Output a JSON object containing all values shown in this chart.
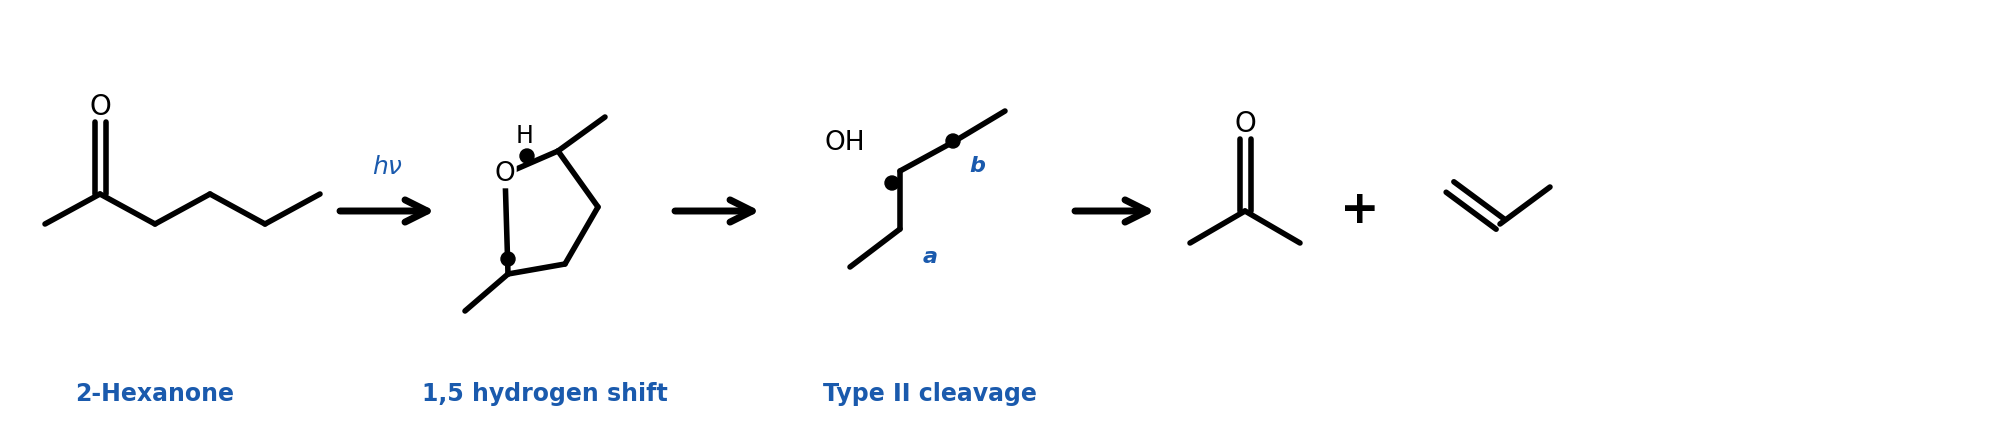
{
  "bg_color": "#ffffff",
  "line_color": "#000000",
  "blue_color": "#1a5aad",
  "label_2hexanone": "2-Hexanone",
  "label_15shift": "1,5 hydrogen shift",
  "label_typeII": "Type II cleavage",
  "label_hn": "hν",
  "figsize": [
    20.0,
    4.29
  ],
  "dpi": 100
}
